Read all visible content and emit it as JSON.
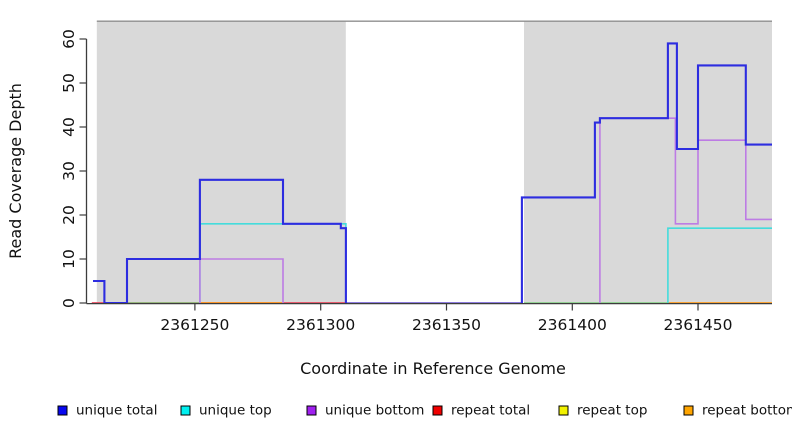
{
  "chart_data": {
    "type": "line",
    "subtype": "step-coverage",
    "title": "",
    "xlabel": "Coordinate in Reference Genome",
    "ylabel": "Read Coverage Depth",
    "x_ticks": [
      2361250,
      2361300,
      2361350,
      2361400,
      2361450
    ],
    "y_ticks": [
      0,
      10,
      20,
      30,
      40,
      50,
      60
    ],
    "xlim": [
      2361207.5,
      2361479.4
    ],
    "ylim": [
      0,
      64
    ],
    "grid": false,
    "legend_position": "bottom",
    "background_shading": {
      "color": "#d9d9d9",
      "top_line_color": "#8f8f8f",
      "regions": [
        [
          2361211,
          2361310
        ],
        [
          2361380.8,
          2361479.4
        ]
      ]
    },
    "series": [
      {
        "key": "repeat-total-baseline",
        "name": "repeat total (baseline)",
        "color": "#e84a5f",
        "width": 1.7,
        "segments": [
          [
            [
              2361209.0,
              0
            ],
            [
              2361310,
              0
            ]
          ]
        ]
      },
      {
        "key": "repeat-top-baseline",
        "name": "repeat top (baseline)",
        "color": "#7ecf7e",
        "width": 1.6,
        "segments": [
          [
            [
              2361223,
              0
            ],
            [
              2361252,
              0
            ]
          ],
          [
            [
              2361380.8,
              0
            ],
            [
              2361438,
              0
            ]
          ]
        ]
      },
      {
        "key": "repeat-bottom-baseline",
        "name": "repeat bottom (baseline)",
        "color": "#ff9d1f",
        "width": 1.8,
        "segments": [
          [
            [
              2361252,
              0
            ],
            [
              2361285,
              0
            ]
          ],
          [
            [
              2361438,
              0
            ],
            [
              2361479.4,
              0
            ]
          ]
        ]
      },
      {
        "key": "unique-top",
        "name": "unique top",
        "color": "#44dcdc",
        "width": 1.6,
        "segments": [
          [
            [
              2361252,
              0
            ],
            [
              2361252,
              18
            ],
            [
              2361310,
              18
            ],
            [
              2361310,
              0
            ]
          ],
          [
            [
              2361438,
              0
            ],
            [
              2361438,
              17
            ],
            [
              2361479.4,
              17
            ]
          ]
        ]
      },
      {
        "key": "unique-bottom-gap",
        "name": "unique bottom (gap baseline)",
        "color": "#7b68d8",
        "width": 1.8,
        "segments": [
          [
            [
              2361310,
              0
            ],
            [
              2361380,
              0
            ]
          ]
        ]
      },
      {
        "key": "unique-bottom",
        "name": "unique bottom",
        "color": "#bd7ce4",
        "width": 1.6,
        "segments": [
          [
            [
              2361252,
              0
            ],
            [
              2361252,
              10
            ],
            [
              2361285,
              10
            ],
            [
              2361285,
              0
            ]
          ],
          [
            [
              2361411,
              0
            ],
            [
              2361411,
              42
            ],
            [
              2361441,
              42
            ],
            [
              2361441,
              18
            ],
            [
              2361450,
              18
            ],
            [
              2361450,
              37
            ],
            [
              2361469,
              37
            ],
            [
              2361469,
              19
            ],
            [
              2361479.4,
              19
            ]
          ]
        ]
      },
      {
        "key": "unique-total",
        "name": "unique total",
        "color": "#2d2de0",
        "width": 2.1,
        "segments": [
          [
            [
              2361209.5,
              5
            ],
            [
              2361214,
              5
            ],
            [
              2361214,
              0
            ],
            [
              2361223,
              0
            ],
            [
              2361223,
              10
            ],
            [
              2361252,
              10
            ],
            [
              2361252,
              28
            ],
            [
              2361285,
              28
            ],
            [
              2361285,
              18
            ],
            [
              2361308,
              18
            ],
            [
              2361308,
              17
            ],
            [
              2361310,
              17
            ],
            [
              2361310,
              0
            ]
          ],
          [
            [
              2361380,
              0
            ],
            [
              2361380,
              24
            ],
            [
              2361409,
              24
            ],
            [
              2361409,
              41
            ],
            [
              2361411,
              41
            ],
            [
              2361411,
              42
            ],
            [
              2361438,
              42
            ],
            [
              2361438,
              59
            ],
            [
              2361441.6,
              59
            ],
            [
              2361441.6,
              35
            ],
            [
              2361450,
              35
            ],
            [
              2361450,
              54
            ],
            [
              2361469,
              54
            ],
            [
              2361469,
              36
            ],
            [
              2361479.4,
              36
            ]
          ]
        ]
      }
    ],
    "legend": [
      {
        "label": "unique total",
        "color": "#0808f0"
      },
      {
        "label": "unique top",
        "color": "#00f0f0"
      },
      {
        "label": "unique bottom",
        "color": "#a020f0"
      },
      {
        "label": "repeat total",
        "color": "#f00000"
      },
      {
        "label": "repeat top",
        "color": "#f2f200"
      },
      {
        "label": "repeat bottom",
        "color": "#ffa500"
      }
    ]
  }
}
